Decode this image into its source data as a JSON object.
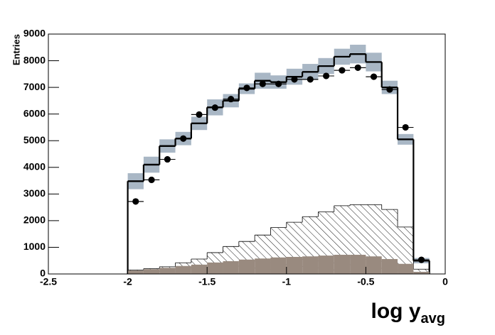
{
  "chart_data": {
    "type": "histogram",
    "x_label": "log y",
    "x_label_sub": "avg",
    "y_label": "Entries",
    "bins": [
      -2.0,
      -1.9,
      -1.8,
      -1.7,
      -1.6,
      -1.5,
      -1.4,
      -1.3,
      -1.2,
      -1.1,
      -1.0,
      -0.9,
      -0.8,
      -0.7,
      -0.6,
      -0.5,
      -0.4,
      -0.3,
      -0.2,
      -0.1
    ],
    "xlim": [
      -2.5,
      0
    ],
    "xticks": [
      -2.5,
      -2,
      -1.5,
      -1,
      -0.5,
      0
    ],
    "ylim": [
      0,
      9000
    ],
    "yticks": [
      0,
      1000,
      2000,
      3000,
      4000,
      5000,
      6000,
      7000,
      8000,
      9000
    ],
    "series": [
      {
        "style": "points",
        "color": "#000000",
        "values": [
          2720,
          3530,
          4300,
          5080,
          5980,
          6240,
          6560,
          6980,
          7130,
          7130,
          7300,
          7300,
          7430,
          7640,
          7740,
          7400,
          6920,
          5500,
          530
        ]
      },
      {
        "style": "line",
        "color": "#000000",
        "band_color": "#a9b7c5",
        "values": [
          3480,
          4100,
          4800,
          5080,
          5650,
          6250,
          6500,
          6950,
          7250,
          7200,
          7400,
          7580,
          7800,
          8150,
          8250,
          7950,
          7000,
          5050,
          500
        ],
        "errors": [
          300,
          300,
          250,
          250,
          250,
          300,
          250,
          200,
          300,
          250,
          300,
          300,
          300,
          300,
          350,
          350,
          250,
          200,
          100
        ]
      },
      {
        "style": "hatch",
        "color": "#000000",
        "values": [
          150,
          200,
          270,
          420,
          560,
          800,
          1030,
          1220,
          1460,
          1740,
          1940,
          2150,
          2330,
          2560,
          2600,
          2600,
          2420,
          1760,
          180
        ]
      },
      {
        "style": "fill",
        "color": "#998a7f",
        "values": [
          130,
          180,
          230,
          300,
          350,
          430,
          480,
          540,
          580,
          620,
          640,
          660,
          690,
          720,
          720,
          660,
          560,
          380,
          80
        ]
      }
    ]
  }
}
